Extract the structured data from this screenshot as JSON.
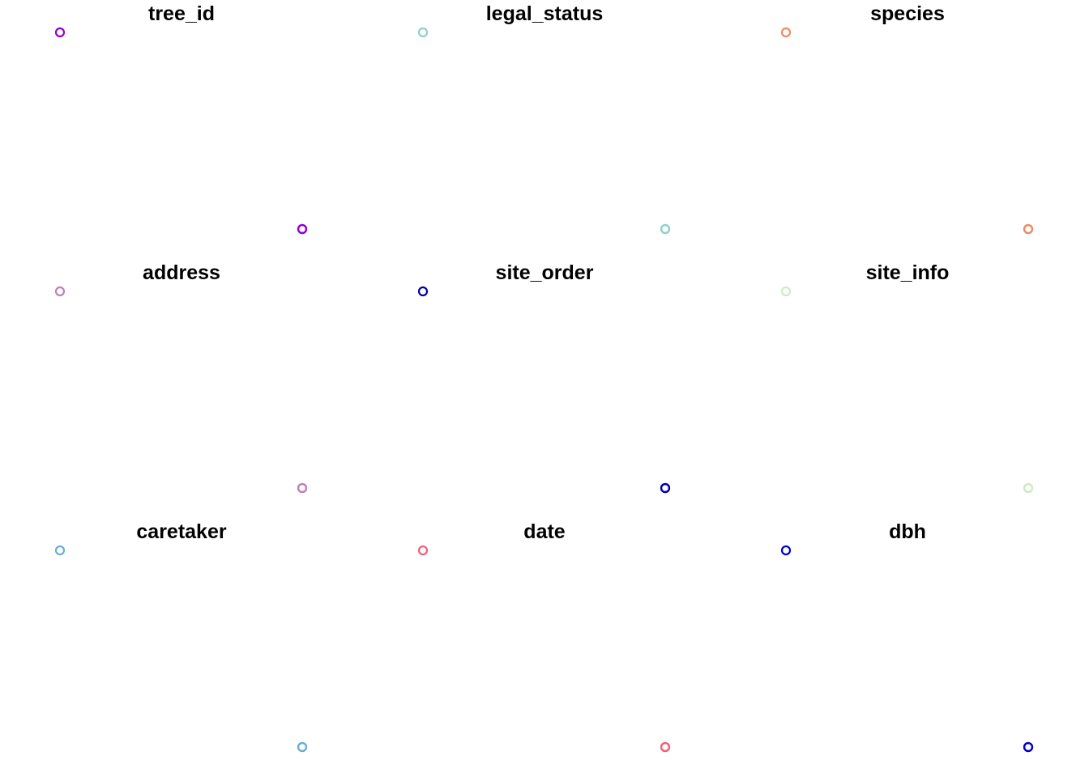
{
  "chart_data": [
    {
      "type": "scatter",
      "title": "tree_id",
      "color": "#9400D3",
      "points": [
        {
          "x": 0,
          "y": 1
        },
        {
          "x": 1,
          "y": 0
        },
        {
          "x": 1,
          "y": 0
        },
        {
          "x": 1,
          "y": 0
        }
      ]
    },
    {
      "type": "scatter",
      "title": "legal_status",
      "color": "#8FD1C6",
      "points": [
        {
          "x": 0,
          "y": 1
        },
        {
          "x": 1,
          "y": 0
        },
        {
          "x": 1,
          "y": 0
        },
        {
          "x": 1,
          "y": 0
        }
      ]
    },
    {
      "type": "scatter",
      "title": "species",
      "color": "#EE8A62",
      "points": [
        {
          "x": 0,
          "y": 1
        },
        {
          "x": 1,
          "y": 0
        },
        {
          "x": 1,
          "y": 0
        },
        {
          "x": 1,
          "y": 0
        }
      ]
    },
    {
      "type": "scatter",
      "title": "address",
      "color": "#BC80BD",
      "points": [
        {
          "x": 0,
          "y": 1
        },
        {
          "x": 1,
          "y": 0
        },
        {
          "x": 1,
          "y": 0
        },
        {
          "x": 1,
          "y": 0
        }
      ]
    },
    {
      "type": "scatter",
      "title": "site_order",
      "color": "#0000AA",
      "points": [
        {
          "x": 0,
          "y": 1
        },
        {
          "x": 1,
          "y": 0
        },
        {
          "x": 1,
          "y": 0
        },
        {
          "x": 1,
          "y": 0
        }
      ]
    },
    {
      "type": "scatter",
      "title": "site_info",
      "color": "#CCEBC5",
      "points": [
        {
          "x": 0,
          "y": 1
        },
        {
          "x": 1,
          "y": 0
        },
        {
          "x": 1,
          "y": 0
        },
        {
          "x": 1,
          "y": 0
        }
      ]
    },
    {
      "type": "scatter",
      "title": "caretaker",
      "color": "#6BAED6",
      "points": [
        {
          "x": 0,
          "y": 1
        },
        {
          "x": 1,
          "y": 0
        },
        {
          "x": 1,
          "y": 0
        },
        {
          "x": 1,
          "y": 0
        }
      ]
    },
    {
      "type": "scatter",
      "title": "date",
      "color": "#F0607A",
      "points": [
        {
          "x": 0,
          "y": 1
        },
        {
          "x": 1,
          "y": 0
        },
        {
          "x": 1,
          "y": 0
        },
        {
          "x": 1,
          "y": 0
        }
      ]
    },
    {
      "type": "scatter",
      "title": "dbh",
      "color": "#0000CD",
      "points": [
        {
          "x": 0,
          "y": 1
        },
        {
          "x": 1,
          "y": 0
        },
        {
          "x": 1,
          "y": 0
        },
        {
          "x": 1,
          "y": 0
        }
      ]
    }
  ]
}
